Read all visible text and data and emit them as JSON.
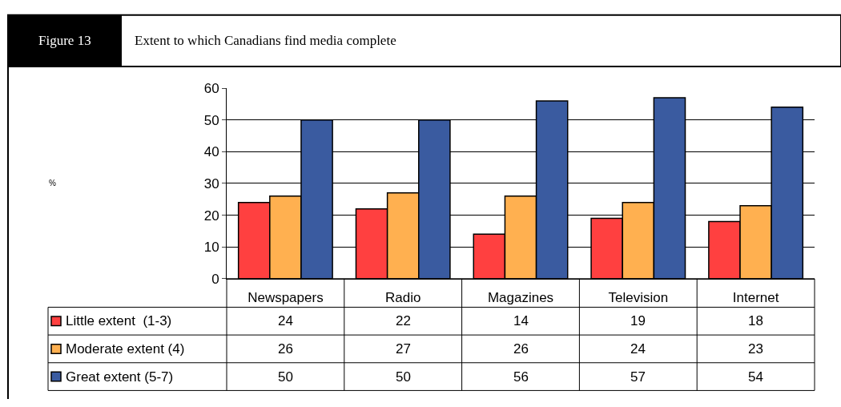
{
  "chart_data": {
    "type": "bar",
    "title": "Extent to which Canadians find media complete",
    "subtitle": "Figure 13",
    "annotations": [
      "%"
    ],
    "categories": [
      "Newspapers",
      "Radio",
      "Magazines",
      "Television",
      "Internet"
    ],
    "series": [
      {
        "name": "Little extent  (1-3)",
        "color": "#ff4040",
        "values": [
          24,
          22,
          14,
          19,
          18
        ]
      },
      {
        "name": "Moderate extent (4)",
        "color": "#ffb050",
        "values": [
          26,
          27,
          26,
          24,
          23
        ]
      },
      {
        "name": "Great extent (5-7)",
        "color": "#3a5ba0",
        "values": [
          50,
          50,
          56,
          57,
          54
        ]
      }
    ],
    "ylim": [
      0,
      60
    ],
    "yticks": [
      0,
      10,
      20,
      30,
      40,
      50,
      60
    ],
    "grid": "y",
    "legend": "bottom left",
    "data_labels": true
  }
}
